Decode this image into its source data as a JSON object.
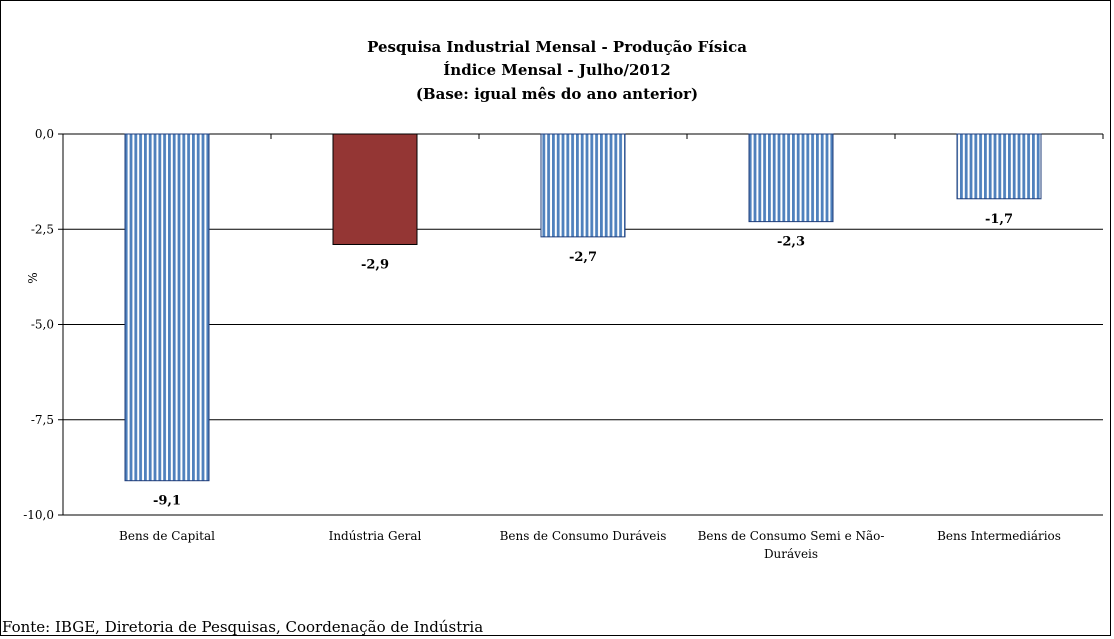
{
  "chart_data": {
    "type": "bar",
    "title": [
      "Pesquisa Industrial Mensal - Produção Física",
      "Índice Mensal - Julho/2012",
      "(Base: igual mês do ano anterior)"
    ],
    "ylabel": "%",
    "ylim": [
      -10,
      0
    ],
    "yticks": [
      "0,0",
      "-2,5",
      "-5,0",
      "-7,5",
      "-10,0"
    ],
    "categories": [
      [
        "Bens de Capital"
      ],
      [
        "Indústria Geral"
      ],
      [
        "Bens de Consumo Duráveis"
      ],
      [
        "Bens de Consumo Semi e Não-",
        "Duráveis"
      ],
      [
        "Bens Intermediários"
      ]
    ],
    "values": [
      -9.1,
      -2.9,
      -2.7,
      -2.3,
      -1.7
    ],
    "data_labels": [
      "-9,1",
      "-2,9",
      "-2,7",
      "-2,3",
      "-1,7"
    ],
    "highlight_index": 1,
    "grid": true,
    "colors": {
      "stripe_blue": "#4f81bd",
      "highlight": "#943634",
      "grid": "#000000"
    }
  },
  "source": "Fonte: IBGE, Diretoria de Pesquisas, Coordenação de Indústria"
}
